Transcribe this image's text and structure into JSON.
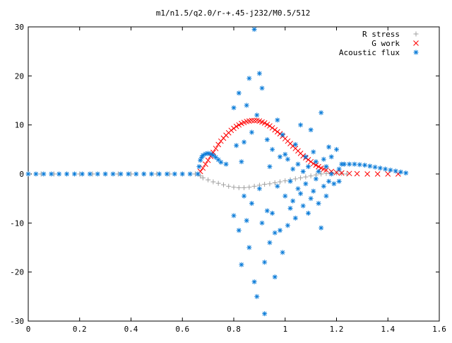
{
  "chart_data": {
    "type": "scatter",
    "title": "m1/n1.5/q2.0/r-+.45-j232/M0.5/512",
    "xlabel": "",
    "ylabel": "",
    "xlim": [
      0,
      1.6
    ],
    "ylim": [
      -30,
      30
    ],
    "x_ticks": [
      "0",
      "0.2",
      "0.4",
      "0.6",
      "0.8",
      "1",
      "1.2",
      "1.4",
      "1.6"
    ],
    "y_ticks": [
      "30",
      "20",
      "10",
      "0",
      "-10",
      "-20",
      "-30"
    ],
    "x_tick_values": [
      0,
      0.2,
      0.4,
      0.6,
      0.8,
      1.0,
      1.2,
      1.4,
      1.6
    ],
    "y_tick_values": [
      30,
      20,
      10,
      0,
      -10,
      -20,
      -30
    ],
    "grid": false,
    "legend_position": "top-right",
    "series": [
      {
        "name": "R stress",
        "marker": "plus",
        "color": "#a0a0a0",
        "points": [
          [
            0.0,
            0
          ],
          [
            0.05,
            0
          ],
          [
            0.1,
            0
          ],
          [
            0.15,
            0
          ],
          [
            0.2,
            0
          ],
          [
            0.25,
            0
          ],
          [
            0.3,
            0
          ],
          [
            0.35,
            0
          ],
          [
            0.4,
            0
          ],
          [
            0.45,
            0
          ],
          [
            0.5,
            0
          ],
          [
            0.55,
            0
          ],
          [
            0.6,
            0
          ],
          [
            0.65,
            0
          ],
          [
            0.66,
            0
          ],
          [
            0.67,
            -0.4
          ],
          [
            0.68,
            -0.8
          ],
          [
            0.7,
            -1.2
          ],
          [
            0.72,
            -1.6
          ],
          [
            0.74,
            -1.9
          ],
          [
            0.76,
            -2.2
          ],
          [
            0.78,
            -2.5
          ],
          [
            0.8,
            -2.7
          ],
          [
            0.82,
            -2.8
          ],
          [
            0.84,
            -2.8
          ],
          [
            0.86,
            -2.7
          ],
          [
            0.88,
            -2.5
          ],
          [
            0.9,
            -2.3
          ],
          [
            0.92,
            -2.1
          ],
          [
            0.94,
            -2.0
          ],
          [
            0.96,
            -1.8
          ],
          [
            0.98,
            -1.6
          ],
          [
            1.0,
            -1.4
          ],
          [
            1.02,
            -1.2
          ],
          [
            1.04,
            -1.0
          ],
          [
            1.06,
            -0.8
          ],
          [
            1.08,
            -0.6
          ],
          [
            1.1,
            -0.4
          ],
          [
            1.12,
            -0.2
          ],
          [
            1.14,
            0
          ],
          [
            1.16,
            0.1
          ],
          [
            1.18,
            0.2
          ],
          [
            1.2,
            0.2
          ],
          [
            1.22,
            0.1
          ],
          [
            1.24,
            0
          ]
        ]
      },
      {
        "name": "G work",
        "marker": "cross",
        "color": "#ff0000",
        "points": [
          [
            0.67,
            0.5
          ],
          [
            0.68,
            1.2
          ],
          [
            0.69,
            2.0
          ],
          [
            0.7,
            2.8
          ],
          [
            0.71,
            3.6
          ],
          [
            0.72,
            4.4
          ],
          [
            0.73,
            5.2
          ],
          [
            0.74,
            6.0
          ],
          [
            0.75,
            6.7
          ],
          [
            0.76,
            7.3
          ],
          [
            0.77,
            7.9
          ],
          [
            0.78,
            8.4
          ],
          [
            0.79,
            8.9
          ],
          [
            0.8,
            9.3
          ],
          [
            0.81,
            9.7
          ],
          [
            0.82,
            10.0
          ],
          [
            0.83,
            10.3
          ],
          [
            0.84,
            10.5
          ],
          [
            0.85,
            10.7
          ],
          [
            0.86,
            10.8
          ],
          [
            0.87,
            10.9
          ],
          [
            0.88,
            10.9
          ],
          [
            0.89,
            10.9
          ],
          [
            0.9,
            10.8
          ],
          [
            0.91,
            10.6
          ],
          [
            0.92,
            10.4
          ],
          [
            0.93,
            10.1
          ],
          [
            0.94,
            9.8
          ],
          [
            0.95,
            9.4
          ],
          [
            0.96,
            9.0
          ],
          [
            0.97,
            8.6
          ],
          [
            0.98,
            8.2
          ],
          [
            0.99,
            7.7
          ],
          [
            1.0,
            7.2
          ],
          [
            1.01,
            6.7
          ],
          [
            1.02,
            6.2
          ],
          [
            1.03,
            5.7
          ],
          [
            1.04,
            5.2
          ],
          [
            1.05,
            4.7
          ],
          [
            1.06,
            4.2
          ],
          [
            1.07,
            3.7
          ],
          [
            1.08,
            3.3
          ],
          [
            1.09,
            2.9
          ],
          [
            1.1,
            2.5
          ],
          [
            1.11,
            2.1
          ],
          [
            1.12,
            1.8
          ],
          [
            1.13,
            1.5
          ],
          [
            1.14,
            1.2
          ],
          [
            1.15,
            1.0
          ],
          [
            1.16,
            0.8
          ],
          [
            1.18,
            0.5
          ],
          [
            1.2,
            0.3
          ],
          [
            1.22,
            0.2
          ],
          [
            1.25,
            0.1
          ],
          [
            1.28,
            0.05
          ],
          [
            1.32,
            0
          ],
          [
            1.36,
            0
          ],
          [
            1.4,
            0
          ],
          [
            1.44,
            0
          ]
        ]
      },
      {
        "name": "Acoustic flux",
        "marker": "star",
        "color": "#0a7bd8",
        "points": [
          [
            0.0,
            0
          ],
          [
            0.03,
            0
          ],
          [
            0.06,
            0
          ],
          [
            0.09,
            0
          ],
          [
            0.12,
            0
          ],
          [
            0.15,
            0
          ],
          [
            0.18,
            0
          ],
          [
            0.21,
            0
          ],
          [
            0.24,
            0
          ],
          [
            0.27,
            0
          ],
          [
            0.3,
            0
          ],
          [
            0.33,
            0
          ],
          [
            0.36,
            0
          ],
          [
            0.39,
            0
          ],
          [
            0.42,
            0
          ],
          [
            0.45,
            0
          ],
          [
            0.48,
            0
          ],
          [
            0.51,
            0
          ],
          [
            0.54,
            0
          ],
          [
            0.57,
            0
          ],
          [
            0.6,
            0
          ],
          [
            0.63,
            0
          ],
          [
            0.66,
            0
          ],
          [
            0.665,
            1.5
          ],
          [
            0.67,
            2.8
          ],
          [
            0.675,
            3.4
          ],
          [
            0.68,
            3.8
          ],
          [
            0.69,
            4.1
          ],
          [
            0.7,
            4.2
          ],
          [
            0.71,
            4.1
          ],
          [
            0.72,
            3.8
          ],
          [
            0.73,
            3.4
          ],
          [
            0.74,
            2.9
          ],
          [
            0.75,
            2.4
          ],
          [
            0.77,
            2.0
          ],
          [
            0.8,
            -8.5
          ],
          [
            0.8,
            13.5
          ],
          [
            0.81,
            5.8
          ],
          [
            0.82,
            16.5
          ],
          [
            0.82,
            -11.5
          ],
          [
            0.83,
            2.5
          ],
          [
            0.83,
            -18.5
          ],
          [
            0.84,
            6.5
          ],
          [
            0.84,
            -4.5
          ],
          [
            0.85,
            14.0
          ],
          [
            0.85,
            -9.5
          ],
          [
            0.86,
            19.5
          ],
          [
            0.86,
            -15.0
          ],
          [
            0.87,
            8.5
          ],
          [
            0.87,
            -6.0
          ],
          [
            0.88,
            29.5
          ],
          [
            0.88,
            -22.0
          ],
          [
            0.89,
            12.0
          ],
          [
            0.89,
            -25.0
          ],
          [
            0.9,
            20.5
          ],
          [
            0.9,
            -3.0
          ],
          [
            0.91,
            -10.0
          ],
          [
            0.91,
            17.5
          ],
          [
            0.92,
            -28.5
          ],
          [
            0.92,
            -18.0
          ],
          [
            0.93,
            -7.5
          ],
          [
            0.93,
            7.0
          ],
          [
            0.94,
            1.5
          ],
          [
            0.94,
            -14.0
          ],
          [
            0.95,
            -8.0
          ],
          [
            0.95,
            5.0
          ],
          [
            0.96,
            -21.0
          ],
          [
            0.96,
            -12.0
          ],
          [
            0.97,
            11.0
          ],
          [
            0.97,
            -2.5
          ],
          [
            0.98,
            3.5
          ],
          [
            0.98,
            -11.5
          ],
          [
            0.99,
            -16.0
          ],
          [
            0.99,
            8.0
          ],
          [
            1.0,
            4.0
          ],
          [
            1.0,
            -4.5
          ],
          [
            1.01,
            -10.5
          ],
          [
            1.01,
            3.0
          ],
          [
            1.02,
            -1.5
          ],
          [
            1.02,
            -7.0
          ],
          [
            1.03,
            1.0
          ],
          [
            1.03,
            -5.5
          ],
          [
            1.04,
            6.0
          ],
          [
            1.04,
            -9.0
          ],
          [
            1.05,
            -3.0
          ],
          [
            1.05,
            2.0
          ],
          [
            1.06,
            -4.0
          ],
          [
            1.06,
            10.0
          ],
          [
            1.07,
            0.5
          ],
          [
            1.07,
            -6.5
          ],
          [
            1.08,
            3.5
          ],
          [
            1.08,
            -2.0
          ],
          [
            1.09,
            -8.0
          ],
          [
            1.09,
            1.5
          ],
          [
            1.1,
            9.0
          ],
          [
            1.1,
            -5.0
          ],
          [
            1.11,
            4.5
          ],
          [
            1.11,
            -3.5
          ],
          [
            1.12,
            -1.0
          ],
          [
            1.12,
            2.5
          ],
          [
            1.13,
            -6.0
          ],
          [
            1.13,
            0.5
          ],
          [
            1.14,
            12.5
          ],
          [
            1.14,
            -11.0
          ],
          [
            1.15,
            3.0
          ],
          [
            1.15,
            -2.5
          ],
          [
            1.16,
            -4.5
          ],
          [
            1.16,
            1.5
          ],
          [
            1.17,
            5.5
          ],
          [
            1.17,
            -1.5
          ],
          [
            1.18,
            0.0
          ],
          [
            1.18,
            3.5
          ],
          [
            1.19,
            -2.0
          ],
          [
            1.2,
            5.0
          ],
          [
            1.21,
            1.0
          ],
          [
            1.21,
            -1.5
          ],
          [
            1.22,
            2.0
          ],
          [
            1.23,
            2.0
          ],
          [
            1.25,
            2.0
          ],
          [
            1.27,
            2.0
          ],
          [
            1.29,
            1.9
          ],
          [
            1.31,
            1.8
          ],
          [
            1.33,
            1.6
          ],
          [
            1.35,
            1.4
          ],
          [
            1.37,
            1.2
          ],
          [
            1.39,
            1.0
          ],
          [
            1.41,
            0.8
          ],
          [
            1.43,
            0.6
          ],
          [
            1.45,
            0.4
          ],
          [
            1.47,
            0.2
          ]
        ]
      }
    ]
  }
}
